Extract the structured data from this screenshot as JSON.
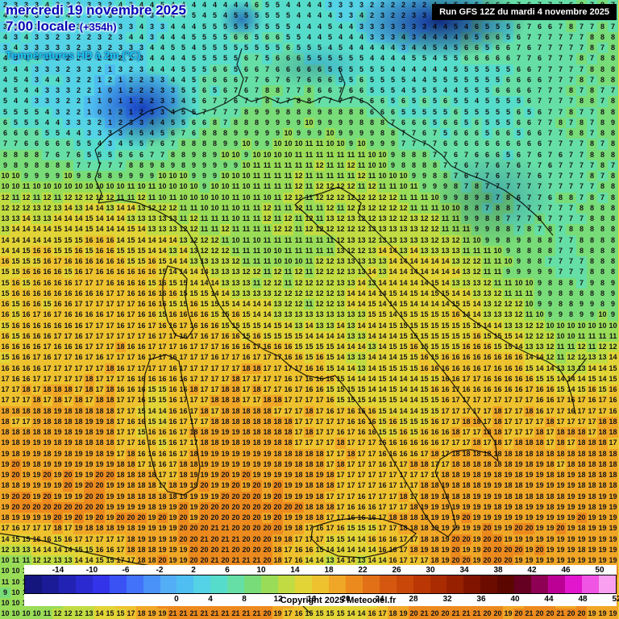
{
  "header": {
    "date_line": "mercredi 19 novembre 2025",
    "time_line": "7:00 locale",
    "forecast_offset": "(+354h)",
    "variable_line": "Températures HD à 2m (°C)"
  },
  "run_info": "Run GFS 12Z du mardi 4 novembre 2025",
  "copyright": "Copyright 2025 Meteociel.fr",
  "legend": {
    "range": [
      -18,
      52
    ],
    "top_labels": [
      -14,
      -10,
      -6,
      -2,
      2,
      6,
      10,
      14,
      18,
      22,
      26,
      30,
      34,
      38,
      42,
      46,
      50
    ],
    "bottom_labels": [
      0,
      4,
      8,
      12,
      16,
      20,
      24,
      28,
      32,
      36,
      40,
      44,
      48,
      52
    ]
  },
  "palette": [
    {
      "t": -18,
      "c": "#15157e"
    },
    {
      "t": -16,
      "c": "#1b1b98"
    },
    {
      "t": -14,
      "c": "#2222b4"
    },
    {
      "t": -12,
      "c": "#2a2ad0"
    },
    {
      "t": -10,
      "c": "#3333ea"
    },
    {
      "t": -8,
      "c": "#3a52f4"
    },
    {
      "t": -6,
      "c": "#4272fa"
    },
    {
      "t": -4,
      "c": "#4a92f8"
    },
    {
      "t": -2,
      "c": "#54aef6"
    },
    {
      "t": 0,
      "c": "#4fbef0"
    },
    {
      "t": 2,
      "c": "#54d2e6"
    },
    {
      "t": 4,
      "c": "#56dcca"
    },
    {
      "t": 6,
      "c": "#66dfa6"
    },
    {
      "t": 8,
      "c": "#78dc78"
    },
    {
      "t": 10,
      "c": "#98dc58"
    },
    {
      "t": 12,
      "c": "#c0dc42"
    },
    {
      "t": 14,
      "c": "#e2d436"
    },
    {
      "t": 16,
      "c": "#eec22e"
    },
    {
      "t": 18,
      "c": "#f0a626"
    },
    {
      "t": 20,
      "c": "#ec8a1e"
    },
    {
      "t": 22,
      "c": "#e27016"
    },
    {
      "t": 24,
      "c": "#d65810"
    },
    {
      "t": 26,
      "c": "#ca470a"
    },
    {
      "t": 28,
      "c": "#ba3604"
    },
    {
      "t": 30,
      "c": "#aa2a02"
    },
    {
      "t": 32,
      "c": "#962000"
    },
    {
      "t": 34,
      "c": "#801400"
    },
    {
      "t": 36,
      "c": "#6c0c00"
    },
    {
      "t": 38,
      "c": "#5c0600"
    },
    {
      "t": 40,
      "c": "#660022"
    },
    {
      "t": 42,
      "c": "#8e0054"
    },
    {
      "t": 44,
      "c": "#bc0096"
    },
    {
      "t": 46,
      "c": "#e216cc"
    },
    {
      "t": 48,
      "c": "#f054e2"
    },
    {
      "t": 50,
      "c": "#f9a0f0"
    },
    {
      "t": 52,
      "c": "#fdd6f9"
    }
  ],
  "temperature_grid": {
    "type": "heatmap",
    "description": "Approximate 2m temperatures (°C) over Italy and the central Mediterranean; coarse control grid, bilinearly interpolated to the printed lattice",
    "cols": 13,
    "rows": 13,
    "values": [
      [
        3,
        3,
        3,
        4,
        4,
        5,
        4,
        3,
        2,
        5,
        6,
        7,
        7
      ],
      [
        4,
        3,
        2,
        4,
        5,
        6,
        5,
        4,
        4,
        5,
        6,
        7,
        8
      ],
      [
        5,
        3,
        0,
        2,
        6,
        8,
        8,
        7,
        5,
        5,
        5,
        7,
        8
      ],
      [
        8,
        7,
        5,
        8,
        9,
        10,
        11,
        11,
        8,
        6,
        6,
        7,
        8
      ],
      [
        12,
        13,
        14,
        12,
        10,
        11,
        12,
        12,
        12,
        9,
        7,
        7,
        8
      ],
      [
        15,
        16,
        16,
        15,
        13,
        10,
        11,
        13,
        14,
        13,
        9,
        7,
        8
      ],
      [
        16,
        16,
        17,
        16,
        16,
        14,
        12,
        14,
        15,
        15,
        12,
        8,
        9
      ],
      [
        16,
        17,
        17,
        17,
        17,
        17,
        16,
        13,
        15,
        16,
        16,
        12,
        14
      ],
      [
        17,
        18,
        18,
        14,
        18,
        18,
        17,
        16,
        14,
        17,
        17,
        17,
        17
      ],
      [
        19,
        19,
        19,
        16,
        19,
        19,
        18,
        17,
        17,
        18,
        18,
        18,
        18
      ],
      [
        19,
        20,
        20,
        19,
        20,
        20,
        19,
        16,
        18,
        19,
        19,
        19,
        19
      ],
      [
        10,
        12,
        15,
        19,
        20,
        21,
        14,
        13,
        17,
        20,
        20,
        19,
        19
      ],
      [
        10,
        11,
        14,
        20,
        21,
        21,
        15,
        14,
        20,
        21,
        20,
        20,
        19
      ]
    ]
  }
}
